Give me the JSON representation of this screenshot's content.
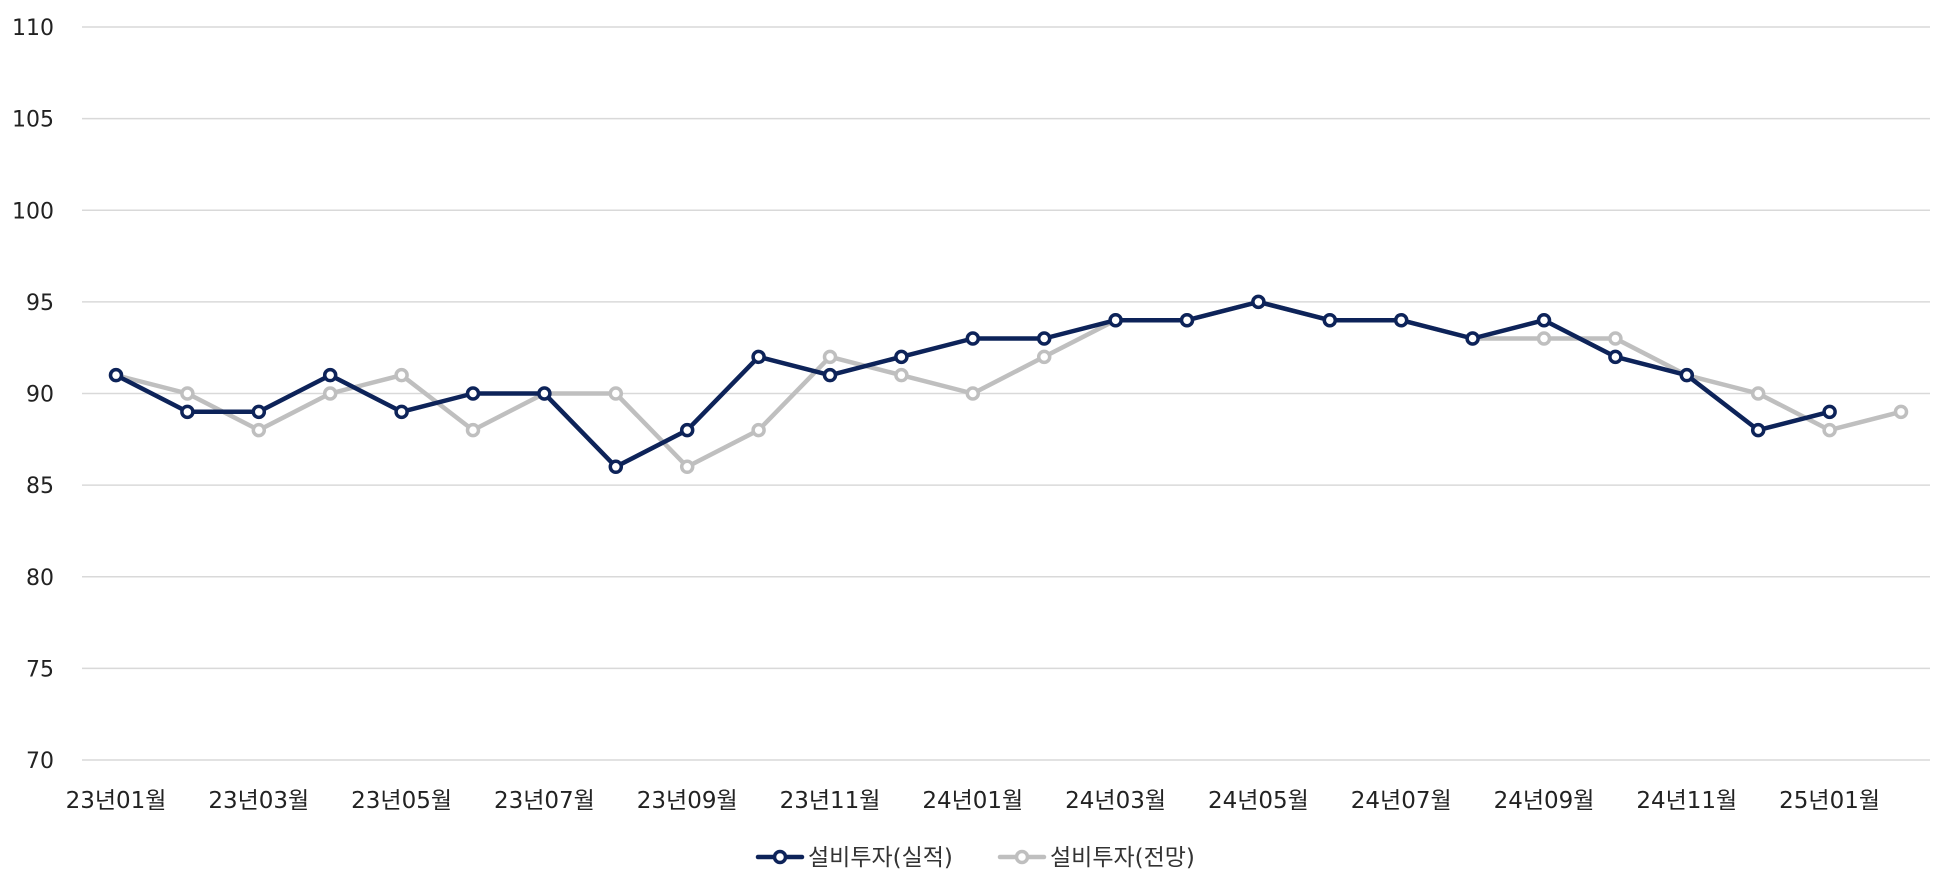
{
  "chart_data": {
    "type": "line",
    "title": "",
    "xlabel": "",
    "ylabel": "",
    "ylim": [
      70,
      110
    ],
    "yticks": [
      70,
      75,
      80,
      85,
      90,
      95,
      100,
      105,
      110
    ],
    "grid": true,
    "legend_position": "bottom",
    "categories": [
      "23년01월",
      "23년02월",
      "23년03월",
      "23년04월",
      "23년05월",
      "23년06월",
      "23년07월",
      "23년08월",
      "23년09월",
      "23년10월",
      "23년11월",
      "23년12월",
      "24년01월",
      "24년02월",
      "24년03월",
      "24년04월",
      "24년05월",
      "24년06월",
      "24년07월",
      "24년08월",
      "24년09월",
      "24년10월",
      "24년11월",
      "24년12월",
      "25년01월",
      "25년02월"
    ],
    "tick_labels": [
      "23년01월",
      "23년03월",
      "23년05월",
      "23년07월",
      "23년09월",
      "23년11월",
      "24년01월",
      "24년03월",
      "24년05월",
      "24년07월",
      "24년09월",
      "24년11월",
      "25년01월"
    ],
    "series": [
      {
        "name": "설비투자(실적)",
        "color": "#0d2359",
        "values": [
          91,
          89,
          89,
          91,
          89,
          90,
          90,
          86,
          88,
          92,
          91,
          92,
          93,
          93,
          94,
          94,
          95,
          94,
          94,
          93,
          94,
          92,
          91,
          88,
          89,
          null
        ]
      },
      {
        "name": "설비투자(전망)",
        "color": "#bfbfbf",
        "values": [
          91,
          90,
          88,
          90,
          91,
          88,
          90,
          90,
          86,
          88,
          92,
          91,
          90,
          92,
          94,
          94,
          95,
          94,
          94,
          93,
          93,
          93,
          91,
          90,
          88,
          89
        ]
      }
    ]
  }
}
